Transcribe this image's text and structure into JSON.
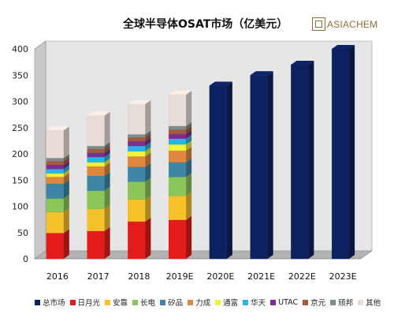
{
  "title": "全球半导体OSAT市场（亿美元）",
  "logo": {
    "text": "ASIACHEM"
  },
  "chart_data": {
    "type": "bar",
    "stacked": true,
    "title": "全球半导体OSAT市场（亿美元）",
    "categories": [
      "2016",
      "2017",
      "2018",
      "2019E",
      "2020E",
      "2021E",
      "2022E",
      "2023E"
    ],
    "ylim": [
      0,
      400
    ],
    "yticks": [
      0,
      50,
      100,
      150,
      200,
      250,
      300,
      350,
      400
    ],
    "grid": false,
    "legend_position": "bottom",
    "series": [
      {
        "name": "总市场",
        "color": "#0d2161",
        "values": [
          null,
          null,
          null,
          null,
          330,
          350,
          370,
          400
        ]
      },
      {
        "name": "日月光",
        "color": "#e41b1b",
        "values": [
          49,
          53,
          71,
          74,
          null,
          null,
          null,
          null
        ]
      },
      {
        "name": "安靠",
        "color": "#f7c12a",
        "values": [
          40,
          42,
          42,
          46,
          null,
          null,
          null,
          null
        ]
      },
      {
        "name": "长电",
        "color": "#8cc65a",
        "values": [
          26,
          35,
          34,
          36,
          null,
          null,
          null,
          null
        ]
      },
      {
        "name": "矽品",
        "color": "#3f86a6",
        "values": [
          28,
          28,
          28,
          28,
          null,
          null,
          null,
          null
        ]
      },
      {
        "name": "力成",
        "color": "#e0873e",
        "values": [
          13,
          18,
          20,
          22,
          null,
          null,
          null,
          null
        ]
      },
      {
        "name": "通富",
        "color": "#f2f23a",
        "values": [
          7,
          8,
          10,
          12,
          null,
          null,
          null,
          null
        ]
      },
      {
        "name": "华天",
        "color": "#27b6e6",
        "values": [
          8,
          10,
          10,
          11,
          null,
          null,
          null,
          null
        ]
      },
      {
        "name": "UTAC",
        "color": "#7b2f96",
        "values": [
          8,
          8,
          9,
          9,
          null,
          null,
          null,
          null
        ]
      },
      {
        "name": "京元",
        "color": "#a65b38",
        "values": [
          7,
          7,
          7,
          8,
          null,
          null,
          null,
          null
        ]
      },
      {
        "name": "颀邦",
        "color": "#7f8c8d",
        "values": [
          6,
          6,
          6,
          7,
          null,
          null,
          null,
          null
        ]
      },
      {
        "name": "其他",
        "color": "#e8ddd6",
        "values": [
          53,
          58,
          58,
          60,
          null,
          null,
          null,
          null
        ]
      }
    ]
  }
}
